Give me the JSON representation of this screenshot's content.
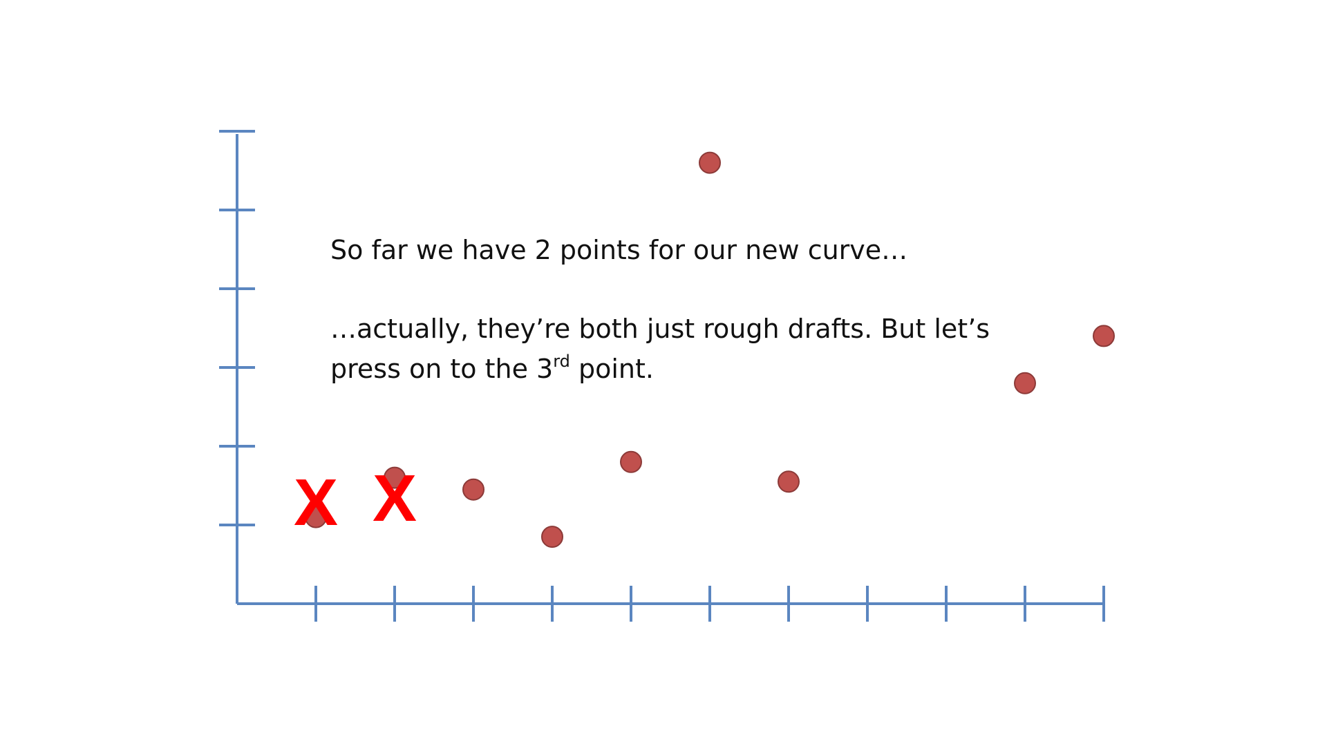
{
  "text": {
    "line1": "So far we have 2 points for our new curve…",
    "line2": "…actually, they’re both just rough drafts. But let’s",
    "line3_pre": "press on to the 3",
    "line3_sup": "rd",
    "line3_post": " point."
  },
  "chart_data": {
    "type": "scatter",
    "xlim": [
      0,
      11
    ],
    "ylim": [
      0,
      6
    ],
    "x_ticks": [
      1,
      2,
      3,
      4,
      5,
      6,
      7,
      8,
      9,
      10,
      11
    ],
    "y_ticks": [
      1,
      2,
      3,
      4,
      5,
      6
    ],
    "grid": false,
    "points": [
      {
        "x": 1,
        "y": 1.1
      },
      {
        "x": 2,
        "y": 1.6
      },
      {
        "x": 3,
        "y": 1.45
      },
      {
        "x": 4,
        "y": 0.85
      },
      {
        "x": 5,
        "y": 1.8
      },
      {
        "x": 6,
        "y": 5.6
      },
      {
        "x": 7,
        "y": 1.55
      },
      {
        "x": 10,
        "y": 2.8
      },
      {
        "x": 11,
        "y": 3.4
      }
    ],
    "cross_marks": [
      {
        "x": 1,
        "y": 1.3
      },
      {
        "x": 2,
        "y": 1.35
      }
    ]
  },
  "colors": {
    "axis": "#5b86c0",
    "point_fill": "#c0504d",
    "point_stroke": "#8c3a38",
    "cross": "#ff0000"
  }
}
